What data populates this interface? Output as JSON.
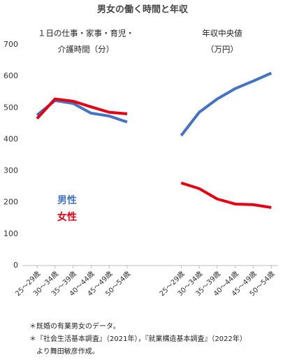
{
  "chart_data": {
    "type": "line",
    "title": "男女の働く時間と年収",
    "annotations": [
      [
        "１日の仕事・家事・育児・",
        "介護時間（分）"
      ],
      [
        "年収中央値",
        "（万円）"
      ]
    ],
    "categories": [
      "25～29歳",
      "30～34歳",
      "35～39歳",
      "40～44歳",
      "45～49歳",
      "50～54歳",
      null,
      "25～29歳",
      "30～34歳",
      "35～39歳",
      "40～44歳",
      "45～49歳",
      "50～54歳"
    ],
    "series": [
      {
        "name": "男性",
        "color": "#4472c4",
        "values": [
          477,
          523,
          514,
          483,
          474,
          455,
          null,
          412,
          486,
          528,
          561,
          585,
          610
        ]
      },
      {
        "name": "女性",
        "color": "#e60012",
        "values": [
          466,
          528,
          521,
          503,
          486,
          481,
          null,
          262,
          244,
          211,
          195,
          193,
          184
        ]
      }
    ],
    "ylim": [
      0,
      700
    ],
    "yticks": [
      0,
      100,
      200,
      300,
      400,
      500,
      600,
      700
    ],
    "grid": false,
    "notes": [
      "＊既婚の有業男女のデータ。",
      "＊『社会生活基本調査』（2021年），『就業構造基本調査』（2022年）",
      "より舞田敏彦作成。"
    ]
  }
}
